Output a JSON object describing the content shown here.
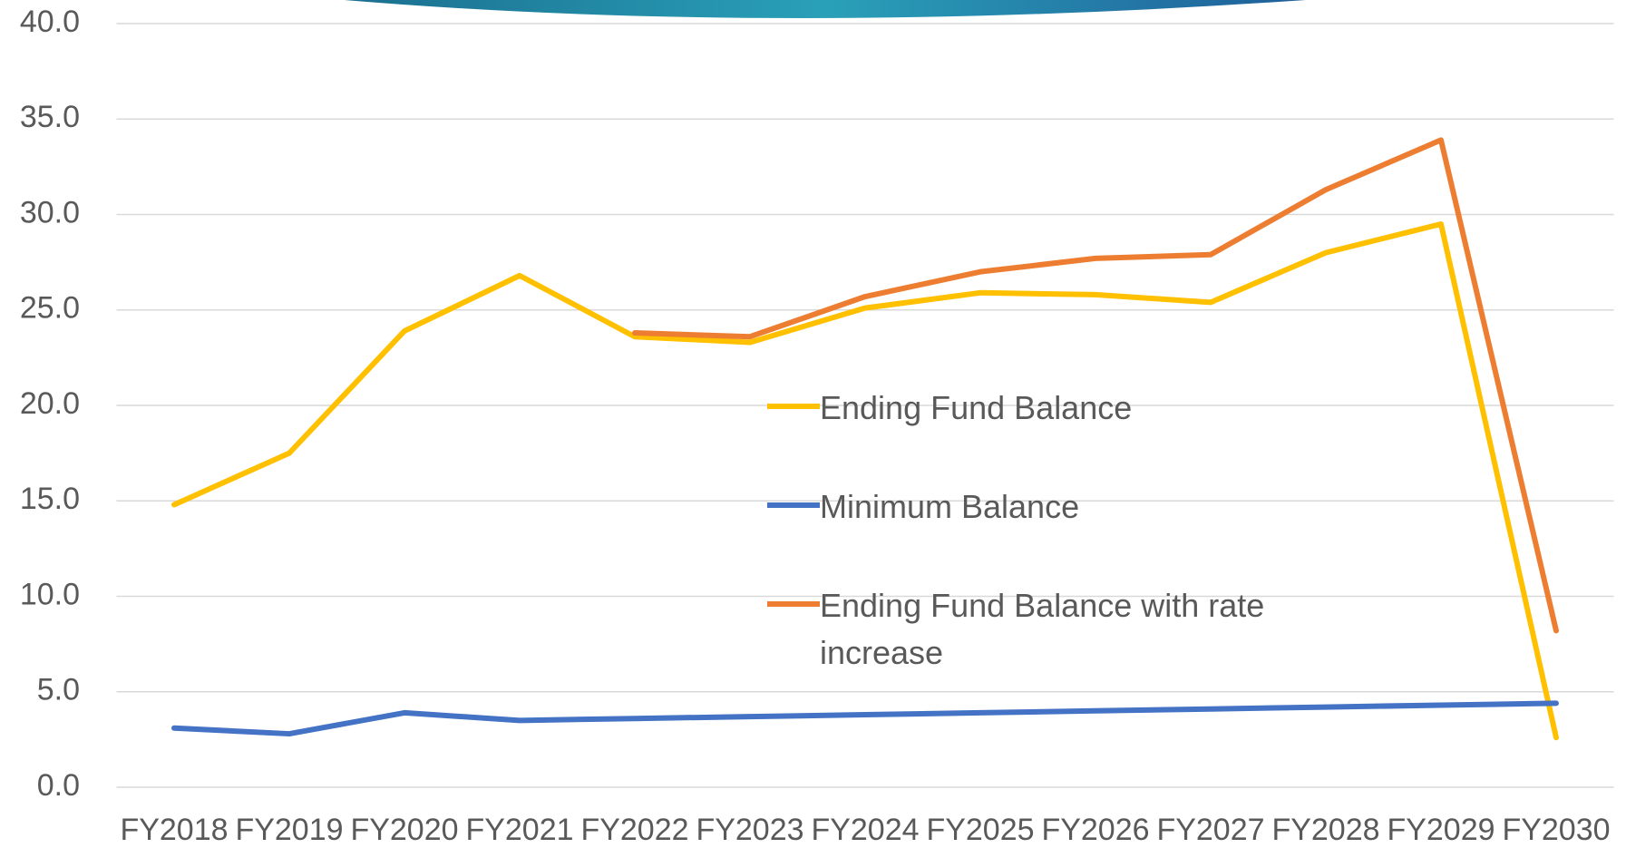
{
  "chart_data": {
    "type": "line",
    "categories": [
      "FY2018",
      "FY2019",
      "FY2020",
      "FY2021",
      "FY2022",
      "FY2023",
      "FY2024",
      "FY2025",
      "FY2026",
      "FY2027",
      "FY2028",
      "FY2029",
      "FY2030"
    ],
    "series": [
      {
        "name": "Ending Fund Balance",
        "color": "#ffc000",
        "values": [
          14.8,
          17.5,
          23.9,
          26.8,
          23.6,
          23.3,
          25.1,
          25.9,
          25.8,
          25.4,
          28.0,
          29.5,
          2.6
        ]
      },
      {
        "name": "Minimum Balance",
        "color": "#4472c4",
        "values": [
          3.1,
          2.8,
          3.9,
          3.5,
          3.6,
          3.7,
          3.8,
          3.9,
          4.0,
          4.1,
          4.2,
          4.3,
          4.4
        ]
      },
      {
        "name": "Ending Fund Balance with rate increase",
        "color": "#ed7d31",
        "values": [
          null,
          null,
          null,
          null,
          23.8,
          23.6,
          25.7,
          27.0,
          27.7,
          27.9,
          31.3,
          33.9,
          8.2
        ]
      }
    ],
    "ylim": [
      0,
      40
    ],
    "yticks": [
      {
        "value": 0,
        "label": "0.0"
      },
      {
        "value": 5,
        "label": "5.0"
      },
      {
        "value": 10,
        "label": "10.0"
      },
      {
        "value": 15,
        "label": "15.0"
      },
      {
        "value": 20,
        "label": "20.0"
      },
      {
        "value": 25,
        "label": "25.0"
      },
      {
        "value": 30,
        "label": "30.0"
      },
      {
        "value": 35,
        "label": "35.0"
      },
      {
        "value": 40,
        "label": "40.0"
      }
    ],
    "grid": true,
    "legend": "center"
  }
}
